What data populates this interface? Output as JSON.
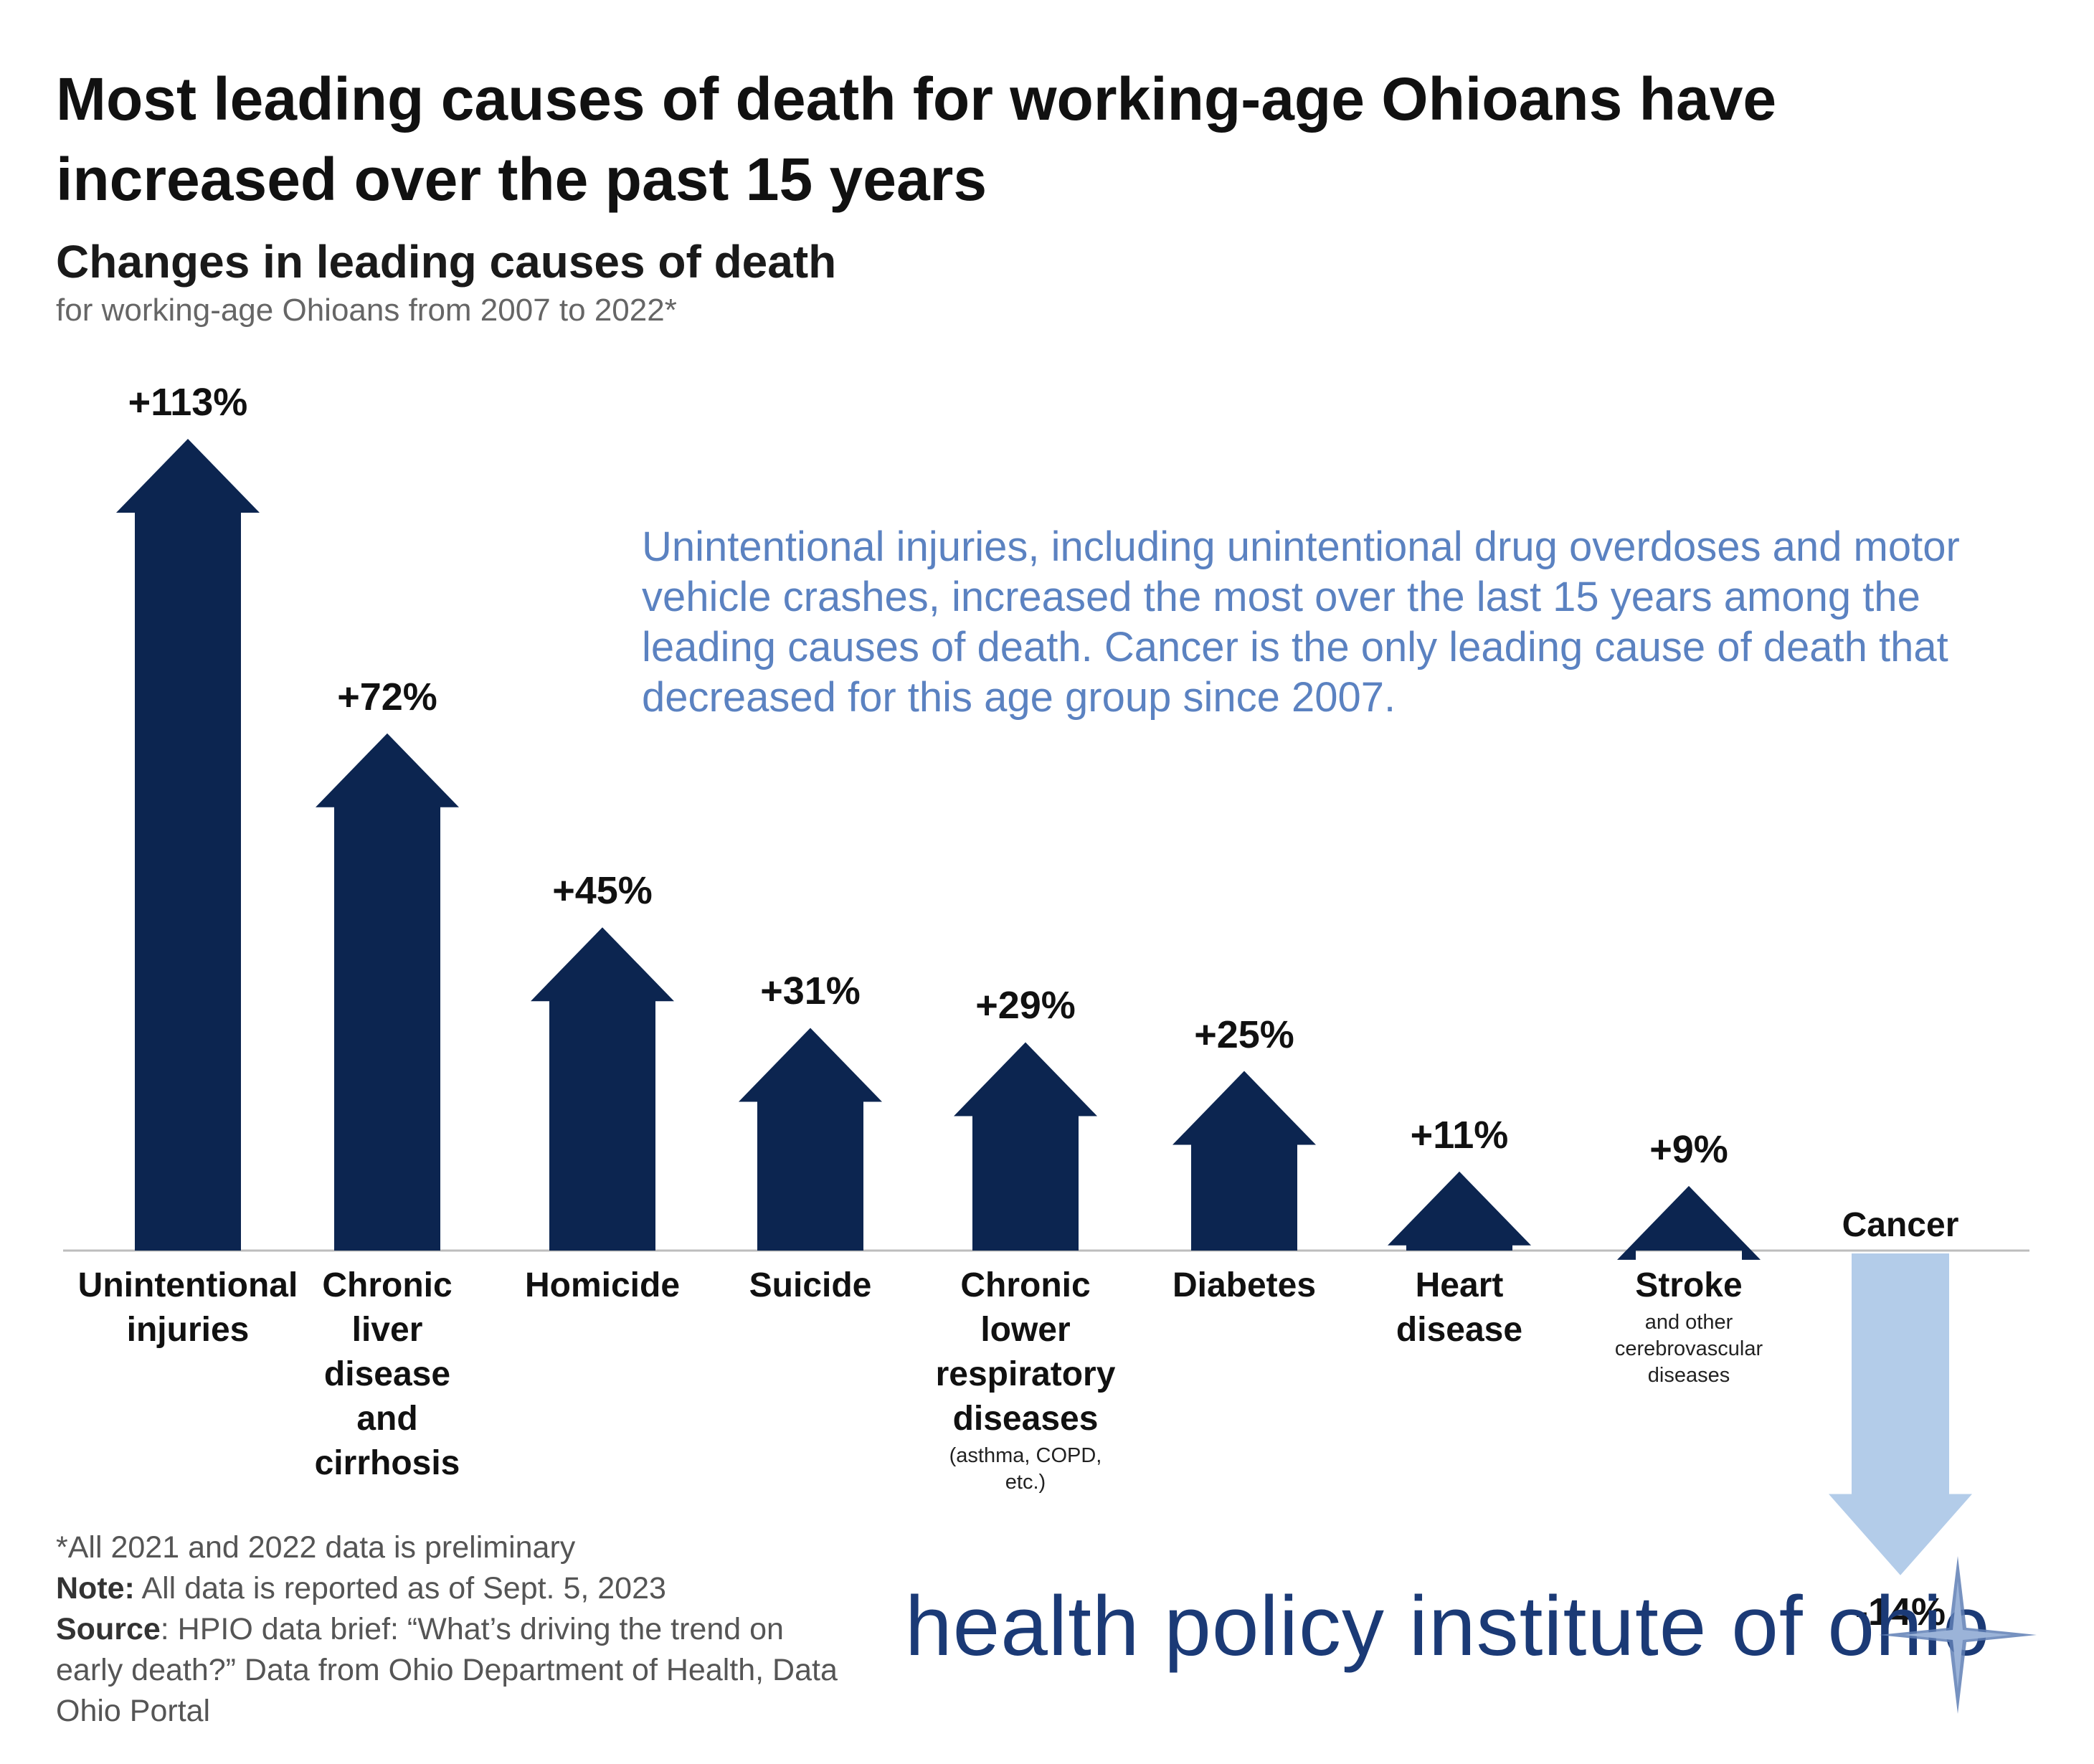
{
  "title": "Most leading causes of death for working-age Ohioans have increased over the past 15 years",
  "subtitle": "Changes in leading causes of death",
  "caption": "for working-age Ohioans from 2007 to 2022*",
  "callout": "Unintentional injuries, including unintentional drug overdoses and motor vehicle crashes, increased the most over the last 15 years among the leading causes of death. Cancer is the only leading cause of death that decreased for this age group since 2007.",
  "colors": {
    "increase": "#0c2550",
    "decrease": "#b3cce9",
    "callout": "#5b82c1",
    "brand": "#1b3a76"
  },
  "chart_data": {
    "type": "bar",
    "categories": [
      "Unintentional injuries",
      "Chronic liver disease and cirrhosis",
      "Homicide",
      "Suicide",
      "Chronic lower respiratory diseases",
      "Diabetes",
      "Heart disease",
      "Stroke",
      "Cancer"
    ],
    "values": [
      113,
      72,
      45,
      31,
      29,
      25,
      11,
      9,
      -14
    ],
    "value_labels": [
      "+113%",
      "+72%",
      "+45%",
      "+31%",
      "+29%",
      "+25%",
      "+11%",
      "+9%",
      "-14%"
    ],
    "label_lines": [
      [
        "Unintentional",
        "injuries"
      ],
      [
        "Chronic",
        "liver",
        "disease",
        "and",
        "cirrhosis"
      ],
      [
        "Homicide"
      ],
      [
        "Suicide"
      ],
      [
        "Chronic",
        "lower",
        "respiratory",
        "diseases"
      ],
      [
        "Diabetes"
      ],
      [
        "Heart",
        "disease"
      ],
      [
        "Stroke"
      ],
      [
        "Cancer"
      ]
    ],
    "notes": {
      "respiratory": [
        "(asthma, COPD,",
        "etc.)"
      ],
      "stroke": [
        "and other",
        "cerebrovascular",
        "diseases"
      ]
    },
    "unit": "%",
    "grid": false,
    "legend": "none"
  },
  "footnotes": {
    "line1": "*All 2021 and 2022 data is preliminary",
    "note_label": "Note:",
    "note_text": " All data is reported as of Sept. 5, 2023",
    "source_label": "Source",
    "source_text": ": HPIO data brief: “What’s driving the trend on early death?” Data from Ohio Department of Health, Data Ohio Portal"
  },
  "brand": "health policy institute of ohio"
}
